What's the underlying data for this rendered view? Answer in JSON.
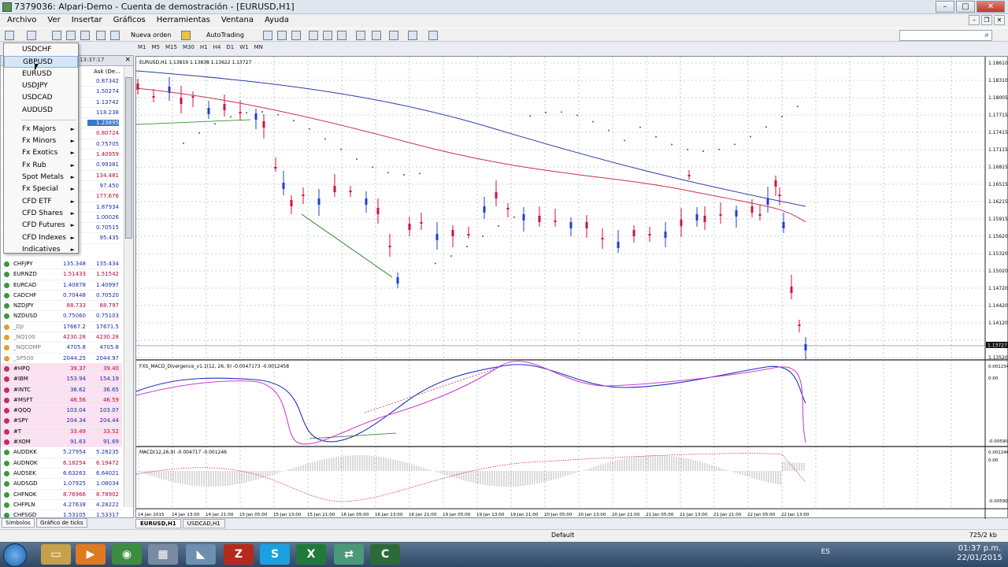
{
  "window": {
    "title": "7379036: Alpari-Demo - Cuenta de demostración - [EURUSD,H1]"
  },
  "menu": [
    "Archivo",
    "Ver",
    "Insertar",
    "Gráficos",
    "Herramientas",
    "Ventana",
    "Ayuda"
  ],
  "toolbar": {
    "new_order": "Nueva orden",
    "autotrading": "AutoTrading"
  },
  "timeframes": [
    "M1",
    "M5",
    "M15",
    "M30",
    "H1",
    "H4",
    "D1",
    "W1",
    "MN"
  ],
  "market_watch": {
    "time": "13:37:17",
    "ask_header": "Ask (De...",
    "visible_asks": [
      "0.87342",
      "1.50274",
      "1.13742",
      "118.238",
      "1.23895",
      "0.80724",
      "0.75705",
      "1.40959",
      "0.99381",
      "134.481",
      "97.450",
      "177.676",
      "1.87934",
      "1.00026",
      "0.70515",
      "95.435"
    ],
    "rows": [
      {
        "symbol": "CHFJPY",
        "bid": "135.348",
        "ask": "135.434"
      },
      {
        "symbol": "EURNZD",
        "bid": "1.51433",
        "ask": "1.51542"
      },
      {
        "symbol": "EURCAD",
        "bid": "1.40878",
        "ask": "1.40997"
      },
      {
        "symbol": "CADCHF",
        "bid": "0.70448",
        "ask": "0.70520"
      },
      {
        "symbol": "NZDJPY",
        "bid": "88.733",
        "ask": "88.797"
      },
      {
        "symbol": "NZDUSD",
        "bid": "0.75060",
        "ask": "0.75103"
      },
      {
        "symbol": "_DJI",
        "bid": "17667.2",
        "ask": "17671.5"
      },
      {
        "symbol": "_NQ100",
        "bid": "4230.28",
        "ask": "4230.28"
      },
      {
        "symbol": "_NQCOMP",
        "bid": "4705.8",
        "ask": "4705.8"
      },
      {
        "symbol": "_SP500",
        "bid": "2044.25",
        "ask": "2044.97"
      },
      {
        "symbol": "#HPQ",
        "bid": "39.37",
        "ask": "39.40"
      },
      {
        "symbol": "#IBM",
        "bid": "153.94",
        "ask": "154.19"
      },
      {
        "symbol": "#INTC",
        "bid": "36.62",
        "ask": "36.65"
      },
      {
        "symbol": "#MSFT",
        "bid": "46.56",
        "ask": "46.59"
      },
      {
        "symbol": "#QQQ",
        "bid": "103.04",
        "ask": "103.07"
      },
      {
        "symbol": "#SPY",
        "bid": "204.34",
        "ask": "204.44"
      },
      {
        "symbol": "#T",
        "bid": "33.49",
        "ask": "33.52"
      },
      {
        "symbol": "#XOM",
        "bid": "91.63",
        "ask": "91.69"
      },
      {
        "symbol": "AUDDKK",
        "bid": "5.27954",
        "ask": "5.28235"
      },
      {
        "symbol": "AUDNOK",
        "bid": "6.18254",
        "ask": "6.19472"
      },
      {
        "symbol": "AUDSEK",
        "bid": "6.63263",
        "ask": "6.64021"
      },
      {
        "symbol": "AUDSGD",
        "bid": "1.07925",
        "ask": "1.08034"
      },
      {
        "symbol": "CHFNOK",
        "bid": "8.76966",
        "ask": "8.78902"
      },
      {
        "symbol": "CHFPLN",
        "bid": "4.27638",
        "ask": "4.28222"
      },
      {
        "symbol": "CHFSGD",
        "bid": "1.53105",
        "ask": "1.53317"
      }
    ],
    "tabs": [
      "Símbolos",
      "Gráfico de ticks"
    ]
  },
  "dropdown": {
    "items": [
      "USDCHF",
      "GBPUSD",
      "EURUSD",
      "USDJPY",
      "USDCAD",
      "AUDUSD"
    ],
    "submenus": [
      "Fx Majors",
      "Fx Minors",
      "Fx Exotics",
      "Fx Rub",
      "Spot Metals",
      "Fx Special",
      "CFD ETF",
      "CFD Shares",
      "CFD Futures",
      "CFD Indexes",
      "Indicatives"
    ],
    "hovered": "GBPUSD"
  },
  "chart": {
    "header": "EURUSD,H1  1.13819 1.13838 1.13622 1.13727",
    "price_ticks": [
      "1.18610",
      "1.18310",
      "1.18005",
      "1.17715",
      "1.17415",
      "1.17115",
      "1.16815",
      "1.16515",
      "1.16215",
      "1.15915",
      "1.15620",
      "1.15320",
      "1.15020",
      "1.14720",
      "1.14420",
      "1.14120",
      "1.13727",
      "1.13520"
    ],
    "current_price": "1.13727",
    "time_labels": [
      "14 Jan 2015",
      "14 Jan 13:00",
      "14 Jan 21:00",
      "15 Jan 05:00",
      "15 Jan 13:00",
      "15 Jan 21:00",
      "16 Jan 05:00",
      "16 Jan 13:00",
      "16 Jan 21:00",
      "19 Jan 05:00",
      "19 Jan 13:00",
      "19 Jan 21:00",
      "20 Jan 05:00",
      "20 Jan 13:00",
      "20 Jan 21:00",
      "21 Jan 05:00",
      "21 Jan 13:00",
      "21 Jan 21:00",
      "22 Jan 05:00",
      "22 Jan 13:00"
    ],
    "ind1_label": "FXS_MACD_Divergence_v1.1(12, 26, 9) -0.0047173 -0.0012458",
    "ind1_ticks": [
      "0.001234",
      "0.00",
      "-0.005908"
    ],
    "ind2_label": "MACD(12,26,9) -0.004717 -0.001246",
    "ind2_ticks": [
      "0.001246",
      "0.00",
      "-0.005908"
    ],
    "tabs": [
      "EURUSD,H1",
      "USDCAD,H1"
    ]
  },
  "status": {
    "profile": "Default",
    "traffic": "725/2 kb"
  },
  "taskbar": {
    "lang": "ES",
    "time": "01:37 p.m.",
    "date": "22/01/2015"
  },
  "colors": {
    "bull": "#1f3fd0",
    "bear": "#d0103a",
    "ma_blue": "#2c3ca8",
    "ma_red": "#c8324a",
    "psar": "#1d6a8a",
    "macd_pink": "#d040d0",
    "macd_blue": "#2030c0"
  }
}
